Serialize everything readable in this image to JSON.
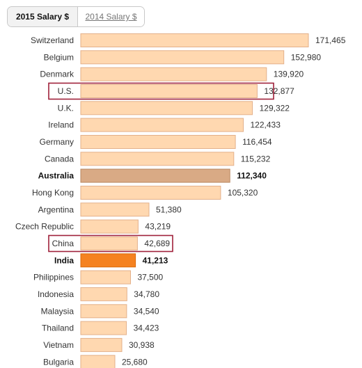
{
  "tabs": {
    "active": "2015 Salary $",
    "inactive": "2014 Salary $"
  },
  "chart_data": {
    "type": "bar",
    "orientation": "horizontal",
    "title": "",
    "xlabel": "",
    "ylabel": "",
    "xlim": [
      0,
      180000
    ],
    "grid": false,
    "categories": [
      "Switzerland",
      "Belgium",
      "Denmark",
      "U.S.",
      "U.K.",
      "Ireland",
      "Germany",
      "Canada",
      "Australia",
      "Hong Kong",
      "Argentina",
      "Czech Republic",
      "China",
      "India",
      "Philippines",
      "Indonesia",
      "Malaysia",
      "Thailand",
      "Vietnam",
      "Bulgaria"
    ],
    "values": [
      171465,
      152980,
      139920,
      132877,
      129322,
      122433,
      116454,
      115232,
      112340,
      105320,
      51380,
      43219,
      42689,
      41213,
      37500,
      34780,
      34540,
      34423,
      30938,
      25680
    ],
    "value_labels": [
      "171,465",
      "152,980",
      "139,920",
      "132,877",
      "129,322",
      "122,433",
      "116,454",
      "115,232",
      "112,340",
      "105,320",
      "51,380",
      "43,219",
      "42,689",
      "41,213",
      "37,500",
      "34,780",
      "34,540",
      "34,423",
      "30,938",
      "25,680"
    ],
    "emphasized": [
      "Australia",
      "India"
    ],
    "outlined": [
      "U.S.",
      "China"
    ],
    "colors": {
      "bar_fill": "#ffd8b0",
      "bar_stroke": "#e3b08a",
      "australia_fill": "#d9aa85",
      "australia_stroke": "#b98862",
      "india_fill": "#f58220",
      "india_stroke": "#d96a0a",
      "outline": "#a0213a"
    }
  }
}
